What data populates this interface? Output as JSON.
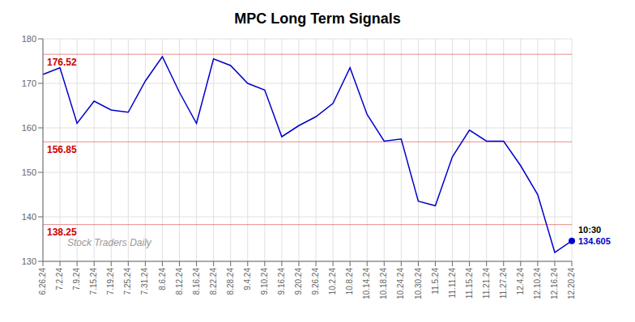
{
  "chart_data": {
    "type": "line",
    "title": "MPC Long Term Signals",
    "categories": [
      "6.26.24",
      "7.2.24",
      "7.9.24",
      "7.15.24",
      "7.19.24",
      "7.25.24",
      "7.31.24",
      "8.6.24",
      "8.12.24",
      "8.16.24",
      "8.22.24",
      "8.28.24",
      "9.4.24",
      "9.10.24",
      "9.16.24",
      "9.20.24",
      "9.26.24",
      "10.2.24",
      "10.8.24",
      "10.14.24",
      "10.18.24",
      "10.24.24",
      "10.30.24",
      "11.5.24",
      "11.11.24",
      "11.15.24",
      "11.21.24",
      "11.27.24",
      "12.4.24",
      "12.10.24",
      "12.16.24",
      "12.20.24"
    ],
    "values": [
      172.0,
      173.5,
      161.0,
      166.0,
      164.0,
      163.5,
      170.5,
      176.0,
      168.0,
      161.0,
      175.5,
      174.0,
      170.0,
      168.5,
      158.0,
      160.5,
      162.5,
      165.5,
      173.5,
      163.0,
      157.0,
      157.5,
      143.5,
      142.5,
      153.5,
      159.5,
      157.0,
      157.0,
      151.5,
      145.0,
      132.0,
      134.605
    ],
    "color": "#0000cc",
    "reference_lines": [
      {
        "value": 176.52,
        "label": "176.52",
        "color": "#cc0000"
      },
      {
        "value": 156.85,
        "label": "156.85",
        "color": "#cc0000"
      },
      {
        "value": 138.25,
        "label": "138.25",
        "color": "#cc0000"
      }
    ],
    "annotations": [
      {
        "text": "10:30",
        "x": "12.20.24",
        "y": 134.605
      },
      {
        "text": "134.605",
        "x": "12.20.24",
        "y": 134.605
      },
      {
        "text": "Stock Traders Daily"
      }
    ],
    "ylim": [
      130,
      180
    ],
    "yticks": [
      130,
      140,
      150,
      160,
      170,
      180
    ],
    "grid": true
  }
}
